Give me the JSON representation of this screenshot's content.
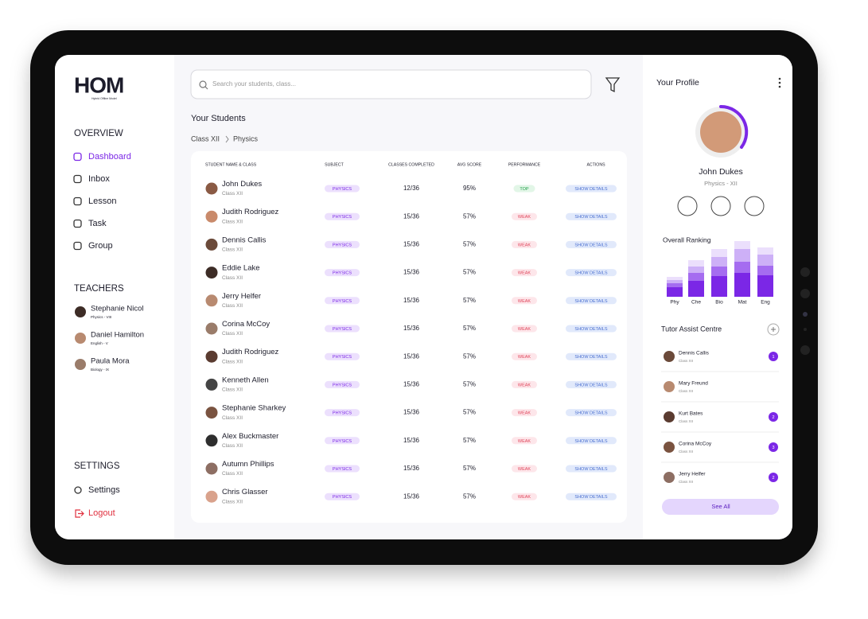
{
  "logo": {
    "text": "HOM",
    "tagline": "Hybrid Offline Model"
  },
  "sidebar": {
    "overview_heading": "OVERVIEW",
    "menu": [
      "Dashboard",
      "Inbox",
      "Lesson",
      "Task",
      "Group"
    ],
    "teachers_heading": "TEACHERS",
    "teachers": [
      {
        "name": "Stephanie Nicol",
        "subject": "Physics - VIII"
      },
      {
        "name": "Daniel Hamilton",
        "subject": "English - V"
      },
      {
        "name": "Paula Mora",
        "subject": "Biology - IX"
      }
    ],
    "settings_heading": "SETTINGS",
    "settings": "Settings",
    "logout": "Logout"
  },
  "search": {
    "placeholder": "Search your students, class..."
  },
  "students": {
    "title": "Your Students",
    "breadcrumb": [
      "Class XII",
      "Physics"
    ],
    "headers": [
      "STUDENT NAME & CLASS",
      "SUBJECT",
      "CLASSES COMPLETED",
      "AVG SCORE",
      "PERFORMANCE",
      "ACTIONS"
    ],
    "rows": [
      {
        "name": "John Dukes",
        "class": "Class XII",
        "subject": "PHYSICS",
        "classes": "12/36",
        "avg": "95%",
        "performance": {
          "label": "TOP",
          "color": "#22a04b",
          "bg": "#e2f6e7"
        },
        "action": "SHOW DETAILS"
      },
      {
        "name": "Judith Rodriguez",
        "class": "Class XII",
        "subject": "PHYSICS",
        "classes": "15/36",
        "avg": "57%",
        "performance": {
          "label": "WEAK",
          "color": "#e0445a",
          "bg": "#fde6ea"
        },
        "action": "SHOW DETAILS"
      },
      {
        "name": "Dennis Callis",
        "class": "Class XII",
        "subject": "PHYSICS",
        "classes": "15/36",
        "avg": "57%",
        "performance": {
          "label": "WEAK",
          "color": "#e0445a",
          "bg": "#fde6ea"
        },
        "action": "SHOW DETAILS"
      },
      {
        "name": "Eddie Lake",
        "class": "Class XII",
        "subject": "PHYSICS",
        "classes": "15/36",
        "avg": "57%",
        "performance": {
          "label": "WEAK",
          "color": "#e0445a",
          "bg": "#fde6ea"
        },
        "action": "SHOW DETAILS"
      },
      {
        "name": "Jerry Helfer",
        "class": "Class XII",
        "subject": "PHYSICS",
        "classes": "15/36",
        "avg": "57%",
        "performance": {
          "label": "WEAK",
          "color": "#e0445a",
          "bg": "#fde6ea"
        },
        "action": "SHOW DETAILS"
      },
      {
        "name": "Corina McCoy",
        "class": "Class XII",
        "subject": "PHYSICS",
        "classes": "15/36",
        "avg": "57%",
        "performance": {
          "label": "WEAK",
          "color": "#e0445a",
          "bg": "#fde6ea"
        },
        "action": "SHOW DETAILS"
      },
      {
        "name": "Judith Rodriguez",
        "class": "Class XII",
        "subject": "PHYSICS",
        "classes": "15/36",
        "avg": "57%",
        "performance": {
          "label": "WEAK",
          "color": "#e0445a",
          "bg": "#fde6ea"
        },
        "action": "SHOW DETAILS"
      },
      {
        "name": "Kenneth Allen",
        "class": "Class XII",
        "subject": "PHYSICS",
        "classes": "15/36",
        "avg": "57%",
        "performance": {
          "label": "WEAK",
          "color": "#e0445a",
          "bg": "#fde6ea"
        },
        "action": "SHOW DETAILS"
      },
      {
        "name": "Stephanie Sharkey",
        "class": "Class XII",
        "subject": "PHYSICS",
        "classes": "15/36",
        "avg": "57%",
        "performance": {
          "label": "WEAK",
          "color": "#e0445a",
          "bg": "#fde6ea"
        },
        "action": "SHOW DETAILS"
      },
      {
        "name": "Alex Buckmaster",
        "class": "Class XII",
        "subject": "PHYSICS",
        "classes": "15/36",
        "avg": "57%",
        "performance": {
          "label": "WEAK",
          "color": "#e0445a",
          "bg": "#fde6ea"
        },
        "action": "SHOW DETAILS"
      },
      {
        "name": "Autumn Phillips",
        "class": "Class XII",
        "subject": "PHYSICS",
        "classes": "15/36",
        "avg": "57%",
        "performance": {
          "label": "WEAK",
          "color": "#e0445a",
          "bg": "#fde6ea"
        },
        "action": "SHOW DETAILS"
      },
      {
        "name": "Chris Glasser",
        "class": "Class XII",
        "subject": "PHYSICS",
        "classes": "15/36",
        "avg": "57%",
        "performance": {
          "label": "WEAK",
          "color": "#e0445a",
          "bg": "#fde6ea"
        },
        "action": "SHOW DETAILS"
      }
    ]
  },
  "profile": {
    "title": "Your Profile",
    "name": "John Dukes",
    "subtitle": "Physics - XII"
  },
  "chart_data": {
    "type": "bar",
    "stacked": true,
    "title": "Overall Ranking",
    "categories": [
      "Phy",
      "Che",
      "Bio",
      "Mat",
      "Eng"
    ],
    "series": [
      {
        "color": "#7b27e6",
        "values": [
          12,
          20,
          26,
          30,
          27
        ]
      },
      {
        "color": "#a56cf0",
        "values": [
          5,
          10,
          12,
          14,
          12
        ]
      },
      {
        "color": "#cdb0f7",
        "values": [
          4,
          8,
          12,
          16,
          14
        ]
      },
      {
        "color": "#ebdffc",
        "values": [
          4,
          8,
          10,
          10,
          9
        ]
      }
    ]
  },
  "tutor": {
    "title": "Tutor Assist Centre",
    "items": [
      {
        "name": "Dennis Callis",
        "class": "Class XII",
        "badge": "1"
      },
      {
        "name": "Mary Freund",
        "class": "Class XII",
        "badge": null
      },
      {
        "name": "Kurt Bates",
        "class": "Class XII",
        "badge": "2"
      },
      {
        "name": "Corina McCoy",
        "class": "Class XII",
        "badge": "3"
      },
      {
        "name": "Jerry Helfer",
        "class": "Class XII",
        "badge": "2"
      }
    ],
    "button": "See All"
  }
}
